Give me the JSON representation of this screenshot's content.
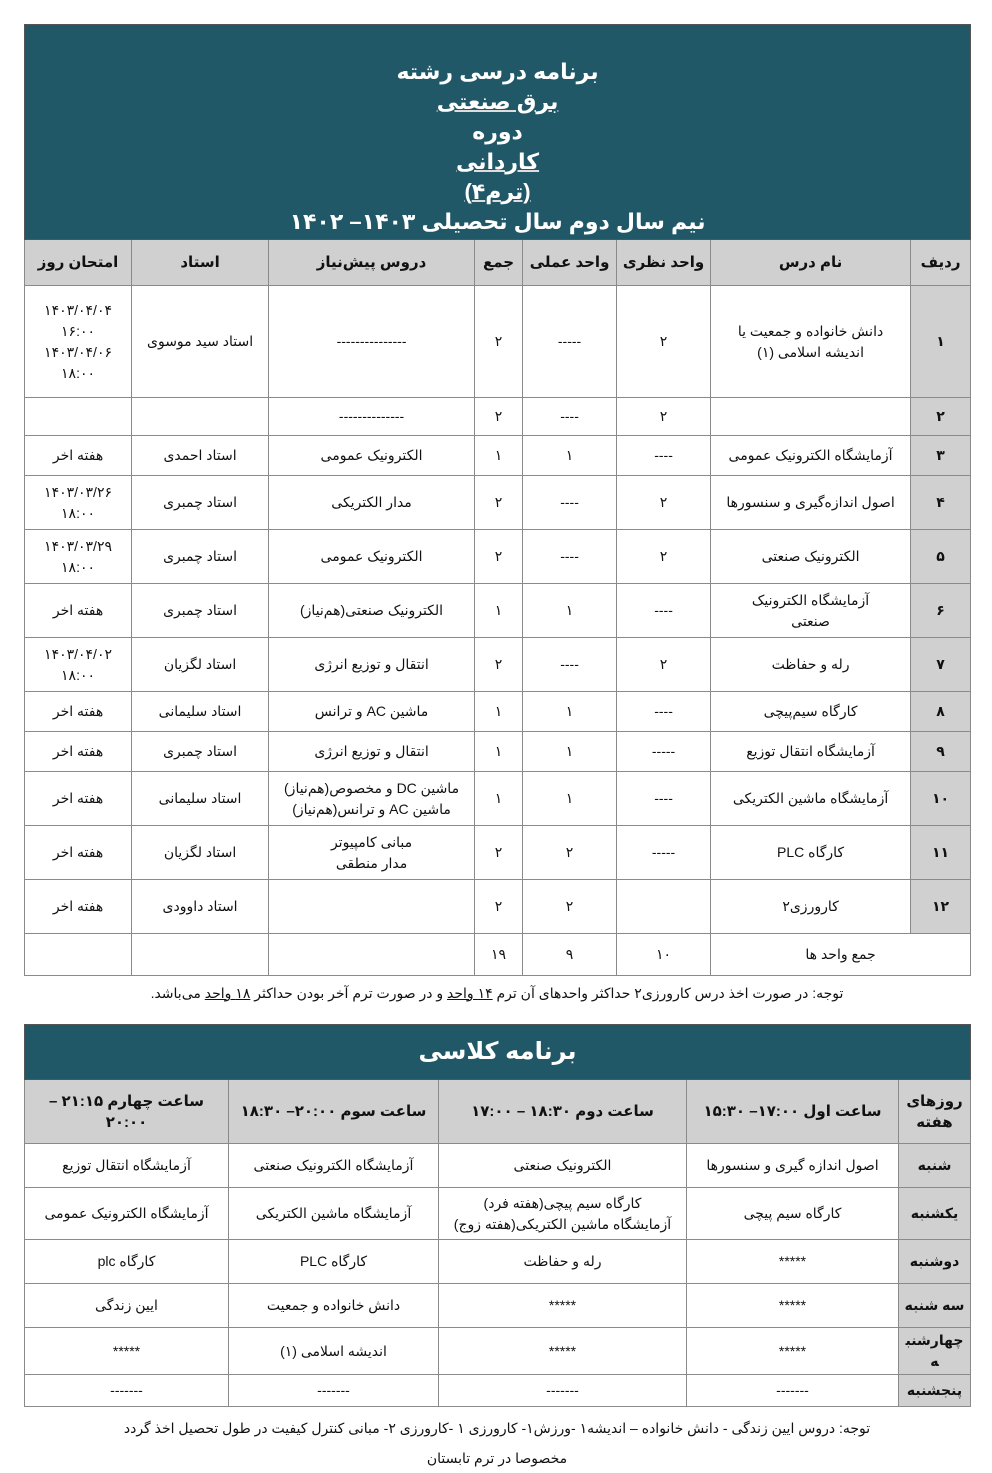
{
  "program": {
    "title_parts": [
      "برنامه درسی رشته",
      "برق صنعتی",
      "دوره",
      "کاردانی",
      "(ترم۴)",
      "نیم سال دوم سال تحصیلی ۱۴۰۳– ۱۴۰۲"
    ],
    "headers": [
      "ردیف",
      "نام درس",
      "واحد نظری",
      "واحد عملی",
      "جمع",
      "دروس پیش‌نیاز",
      "استاد",
      "امتحان روز"
    ],
    "rows": [
      [
        "۱",
        "دانش خانواده و جمعیت یا\nاندیشه اسلامی (۱)",
        "۲",
        "-----",
        "۲",
        "---------------",
        "استاد سید موسوی",
        "۱۴۰۳/۰۴/۰۴\n۱۶:۰۰\n۱۴۰۳/۰۴/۰۶\n۱۸:۰۰"
      ],
      [
        "۲",
        "",
        "۲",
        "----",
        "۲",
        "--------------",
        "",
        ""
      ],
      [
        "۳",
        "آزمایشگاه الکترونیک عمومی",
        "----",
        "۱",
        "۱",
        "الکترونیک عمومی",
        "استاد احمدی",
        "هفته اخر"
      ],
      [
        "۴",
        "اصول اندازه‌گیری و سنسورها",
        "۲",
        "----",
        "۲",
        "مدار الکتریکی",
        "استاد چمبری",
        "۱۴۰۳/۰۳/۲۶\n۱۸:۰۰"
      ],
      [
        "۵",
        "الکترونیک صنعتی",
        "۲",
        "----",
        "۲",
        "الکترونیک عمومی",
        "استاد چمبری",
        "۱۴۰۳/۰۳/۲۹\n۱۸:۰۰"
      ],
      [
        "۶",
        "آزمایشگاه  الکترونیک\nصنعتی",
        "----",
        "۱",
        "۱",
        "الکترونیک صنعتی(هم‌نیاز)",
        "استاد چمبری",
        "هفته اخر"
      ],
      [
        "۷",
        "رله و حفاظت",
        "۲",
        "----",
        "۲",
        "انتقال و توزیع انرژی",
        "استاد لگزیان",
        "۱۴۰۳/۰۴/۰۲\n۱۸:۰۰"
      ],
      [
        "۸",
        "کارگاه سیم‌پیچی",
        "----",
        "۱",
        "۱",
        "ماشین AC و ترانس",
        "استاد سلیمانی",
        "هفته اخر"
      ],
      [
        "۹",
        "آزمایشگاه انتقال توزیع",
        "-----",
        "۱",
        "۱",
        "انتقال و توزیع انرژی",
        "استاد چمبری",
        "هفته اخر"
      ],
      [
        "۱۰",
        "آزمایشگاه  ماشین الکتریکی",
        "----",
        "۱",
        "۱",
        "ماشین DC و مخصوص(هم‌نیاز)\nماشین AC و ترانس(هم‌نیاز)",
        "استاد سلیمانی",
        "هفته اخر"
      ],
      [
        "۱۱",
        "کارگاه PLC",
        "-----",
        "۲",
        "۲",
        "مبانی کامپیوتر\nمدار منطقی",
        "استاد لگزیان",
        "هفته اخر"
      ],
      [
        "۱۲",
        "کارورزی۲",
        "",
        "۲",
        "۲",
        "",
        "استاد داوودی",
        "هفته اخر"
      ]
    ],
    "total": {
      "label": "جمع واحد ها",
      "theory": "۱۰",
      "practical": "۹",
      "sum": "۱۹"
    },
    "note_parts": [
      "توجه: در صورت اخذ درس کارورزی۲ حداکثر واحدهای آن ترم",
      "۱۴ واحد",
      "و در صورت ترم آخر بودن حداکثر",
      "۱۸ واحد",
      "می‌باشد."
    ]
  },
  "schedule": {
    "title": "برنامه کلاسی",
    "headers": [
      "روزهای\nهفته",
      "ساعت اول ۱۷:۰۰– ۱۵:۳۰",
      "ساعت دوم ۱۸:۳۰ – ۱۷:۰۰",
      "ساعت سوم ۲۰:۰۰– ۱۸:۳۰",
      "ساعت چهارم ۲۱:۱۵ – ۲۰:۰۰"
    ],
    "rows": [
      [
        "شنبه",
        "اصول اندازه گیری و سنسورها",
        "الکترونیک صنعتی",
        "آزمایشگاه الکترونیک صنعتی",
        "آزمایشگاه انتقال توزیع"
      ],
      [
        "یکشنبه",
        "کارگاه سیم پیچی",
        "کارگاه سیم پیچی(هفته فرد)\nآزمایشگاه ماشین الکتریکی(هفته زوج)",
        "آزمایشگاه ماشین الکتریکی",
        "آزمایشگاه  الکترونیک عمومی"
      ],
      [
        "دوشنبه",
        "*****",
        "رله و حفاظت",
        "کارگاه PLC",
        "کارگاه plc"
      ],
      [
        "سه شنبه",
        "*****",
        "*****",
        "دانش خانواده و جمعیت",
        "ایین زندگی"
      ],
      [
        "چهارشنبه",
        "*****",
        "*****",
        "اندیشه اسلامی (۱)",
        "*****"
      ],
      [
        "پنجشنبه",
        "-------",
        "-------",
        "-------",
        "-------"
      ]
    ],
    "note_lines": [
      "توجه: دروس ایین زندگی -  دانش خانواده – اندیشه۱ -ورزش۱- کارورزی ۱ -کارورزی ۲- مبانی کنترل کیفیت  در طول تحصیل اخذ گردد",
      "مخصوصا در ترم تابستان"
    ]
  },
  "colors": {
    "header_band": "#215868",
    "header_cells": "#d0d0d0"
  }
}
